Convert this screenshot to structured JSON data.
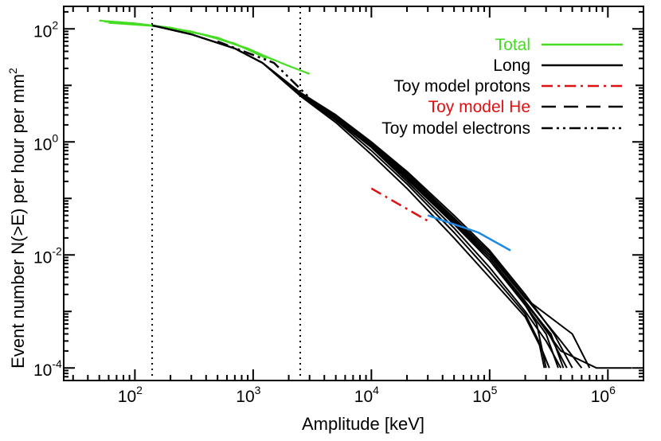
{
  "chart_data": {
    "type": "line",
    "xscale": "log",
    "yscale": "log",
    "xlabel": "Amplitude [keV]",
    "ylabel": "Event number N(>E) per hour per mm",
    "ylabel_sup": "2",
    "xlim": [
      25,
      2000000
    ],
    "ylim": [
      6e-05,
      250
    ],
    "xticks": [
      {
        "value": 100,
        "base": "10",
        "exp": "2"
      },
      {
        "value": 1000,
        "base": "10",
        "exp": "3"
      },
      {
        "value": 10000,
        "base": "10",
        "exp": "4"
      },
      {
        "value": 100000,
        "base": "10",
        "exp": "5"
      },
      {
        "value": 1000000,
        "base": "10",
        "exp": "6"
      }
    ],
    "yticks": [
      {
        "value": 100,
        "base": "10",
        "exp": "2"
      },
      {
        "value": 1,
        "base": "10",
        "exp": "0"
      },
      {
        "value": 0.01,
        "base": "10",
        "exp": "-2"
      },
      {
        "value": 0.0001,
        "base": "10",
        "exp": "-4"
      }
    ],
    "vlines": [
      140,
      2500
    ],
    "legend": {
      "placement": "top-right",
      "entries": [
        {
          "label": "Total",
          "text_color": "#44dd22",
          "line_color": "#44dd22",
          "dash": "solid"
        },
        {
          "label": "Long",
          "text_color": "#000000",
          "line_color": "#000000",
          "dash": "solid"
        },
        {
          "label": "Toy model protons",
          "text_color": "#000000",
          "line_color": "#dd1111",
          "dash": "dashdot"
        },
        {
          "label": "Toy model He",
          "text_color": "#dd1111",
          "line_color": "#000000",
          "dash": "dash"
        },
        {
          "label": "Toy model electrons",
          "text_color": "#000000",
          "line_color": "#000000",
          "dash": "dashdotdot"
        }
      ]
    },
    "series": [
      {
        "kind": "total",
        "color": "#44dd22",
        "points": [
          [
            50,
            140
          ],
          [
            100,
            125
          ],
          [
            200,
            105
          ],
          [
            500,
            70
          ],
          [
            1000,
            40
          ],
          [
            2000,
            22
          ],
          [
            3000,
            16
          ]
        ]
      },
      {
        "kind": "total",
        "color": "#44dd22",
        "points": [
          [
            55,
            135
          ],
          [
            120,
            118
          ],
          [
            300,
            90
          ],
          [
            700,
            55
          ],
          [
            1300,
            30
          ]
        ]
      },
      {
        "kind": "total",
        "color": "#44dd22",
        "points": [
          [
            60,
            128
          ],
          [
            150,
            112
          ],
          [
            400,
            78
          ],
          [
            900,
            45
          ],
          [
            1500,
            28
          ]
        ]
      },
      {
        "kind": "long",
        "color": "#000000",
        "points": [
          [
            140,
            115
          ],
          [
            300,
            80
          ],
          [
            700,
            45
          ],
          [
            1200,
            25
          ],
          [
            2500,
            7
          ],
          [
            5000,
            2.5
          ],
          [
            10000,
            0.8
          ],
          [
            20000,
            0.2
          ],
          [
            50000,
            0.03
          ],
          [
            100000,
            0.006
          ],
          [
            200000,
            0.001
          ],
          [
            300000,
            0.0003
          ],
          [
            400000,
            0.0001
          ]
        ]
      },
      {
        "kind": "long",
        "color": "#000000",
        "points": [
          [
            140,
            115
          ],
          [
            300,
            80
          ],
          [
            700,
            45
          ],
          [
            1200,
            25
          ],
          [
            2500,
            7.5
          ],
          [
            5000,
            3
          ],
          [
            10000,
            1.0
          ],
          [
            20000,
            0.3
          ],
          [
            50000,
            0.05
          ],
          [
            100000,
            0.012
          ],
          [
            200000,
            0.002
          ],
          [
            350000,
            0.0004
          ],
          [
            500000,
            0.0001
          ]
        ]
      },
      {
        "kind": "long",
        "color": "#000000",
        "points": [
          [
            140,
            115
          ],
          [
            300,
            80
          ],
          [
            700,
            45
          ],
          [
            1200,
            25
          ],
          [
            2500,
            6.5
          ],
          [
            5000,
            2.2
          ],
          [
            10000,
            0.6
          ],
          [
            20000,
            0.15
          ],
          [
            50000,
            0.02
          ],
          [
            100000,
            0.004
          ],
          [
            200000,
            0.0008
          ],
          [
            280000,
            0.0002
          ],
          [
            320000,
            0.0001
          ]
        ]
      },
      {
        "kind": "long",
        "color": "#000000",
        "points": [
          [
            140,
            115
          ],
          [
            300,
            80
          ],
          [
            700,
            45
          ],
          [
            1200,
            25
          ],
          [
            2500,
            7.2
          ],
          [
            5000,
            2.8
          ],
          [
            10000,
            0.9
          ],
          [
            20000,
            0.25
          ],
          [
            50000,
            0.04
          ],
          [
            100000,
            0.009
          ],
          [
            200000,
            0.0015
          ],
          [
            300000,
            0.0005
          ],
          [
            450000,
            0.0001
          ]
        ]
      },
      {
        "kind": "long",
        "color": "#000000",
        "points": [
          [
            140,
            115
          ],
          [
            300,
            80
          ],
          [
            700,
            45
          ],
          [
            1200,
            25
          ],
          [
            2500,
            7
          ],
          [
            5000,
            2.6
          ],
          [
            10000,
            0.85
          ],
          [
            20000,
            0.22
          ],
          [
            50000,
            0.035
          ],
          [
            100000,
            0.008
          ],
          [
            200000,
            0.0013
          ],
          [
            300000,
            0.0004
          ],
          [
            380000,
            0.0001
          ]
        ]
      },
      {
        "kind": "long",
        "color": "#000000",
        "points": [
          [
            140,
            115
          ],
          [
            300,
            80
          ],
          [
            700,
            45
          ],
          [
            1200,
            25
          ],
          [
            2500,
            6.8
          ],
          [
            5000,
            2.4
          ],
          [
            10000,
            0.7
          ],
          [
            20000,
            0.18
          ],
          [
            50000,
            0.025
          ],
          [
            100000,
            0.005
          ],
          [
            200000,
            0.0009
          ],
          [
            260000,
            0.0003
          ],
          [
            290000,
            0.0001
          ]
        ]
      },
      {
        "kind": "long",
        "color": "#000000",
        "points": [
          [
            140,
            115
          ],
          [
            300,
            80
          ],
          [
            700,
            45
          ],
          [
            1200,
            25
          ],
          [
            2500,
            7.4
          ],
          [
            5000,
            2.9
          ],
          [
            10000,
            0.95
          ],
          [
            20000,
            0.28
          ],
          [
            50000,
            0.045
          ],
          [
            100000,
            0.011
          ],
          [
            200000,
            0.0018
          ],
          [
            400000,
            0.0003
          ],
          [
            600000,
            0.0001
          ]
        ]
      },
      {
        "kind": "long",
        "color": "#000000",
        "points": [
          [
            140,
            115
          ],
          [
            300,
            80
          ],
          [
            700,
            45
          ],
          [
            1200,
            25
          ],
          [
            2500,
            7.1
          ],
          [
            5000,
            2.7
          ],
          [
            10000,
            0.88
          ],
          [
            20000,
            0.24
          ],
          [
            50000,
            0.038
          ],
          [
            100000,
            0.009
          ],
          [
            200000,
            0.0014
          ],
          [
            330000,
            0.0004
          ],
          [
            420000,
            0.0001
          ]
        ]
      },
      {
        "kind": "long",
        "color": "#000000",
        "points": [
          [
            140,
            115
          ],
          [
            300,
            80
          ],
          [
            700,
            45
          ],
          [
            1200,
            25
          ],
          [
            2500,
            7
          ],
          [
            5000,
            2.6
          ],
          [
            10000,
            0.82
          ],
          [
            20000,
            0.22
          ],
          [
            50000,
            0.035
          ],
          [
            100000,
            0.008
          ],
          [
            200000,
            0.0013
          ],
          [
            250000,
            0.0006
          ],
          [
            300000,
            0.0001
          ]
        ]
      },
      {
        "kind": "long",
        "color": "#000000",
        "points": [
          [
            140,
            115
          ],
          [
            300,
            80
          ],
          [
            700,
            45
          ],
          [
            1200,
            25
          ],
          [
            2500,
            7.2
          ],
          [
            5000,
            2.8
          ],
          [
            10000,
            0.9
          ],
          [
            20000,
            0.26
          ],
          [
            50000,
            0.042
          ],
          [
            100000,
            0.01
          ],
          [
            200000,
            0.0017
          ],
          [
            500000,
            0.0004
          ],
          [
            700000,
            0.0001
          ]
        ]
      },
      {
        "kind": "long",
        "color": "#000000",
        "points": [
          [
            140,
            115
          ],
          [
            300,
            80
          ],
          [
            700,
            45
          ],
          [
            1200,
            25
          ],
          [
            2500,
            7
          ],
          [
            5000,
            2.6
          ],
          [
            10000,
            0.85
          ],
          [
            20000,
            0.23
          ],
          [
            50000,
            0.036
          ],
          [
            100000,
            0.009
          ],
          [
            200000,
            0.0015
          ],
          [
            400000,
            0.0002
          ],
          [
            800000,
            0.0001
          ],
          [
            1600000,
            0.0001
          ]
        ]
      },
      {
        "kind": "toy-protons",
        "color": "#dd1111",
        "points": [
          [
            10000,
            0.15
          ],
          [
            30000,
            0.04
          ]
        ]
      },
      {
        "kind": "toy-electrons",
        "color": "#000000",
        "points": [
          [
            500,
            60
          ],
          [
            1500,
            25
          ],
          [
            3000,
            6
          ]
        ]
      },
      {
        "kind": "toy-electrons",
        "color": "#1e88e5",
        "points": [
          [
            30000,
            0.05
          ],
          [
            80000,
            0.025
          ],
          [
            150000,
            0.012
          ]
        ]
      }
    ]
  }
}
